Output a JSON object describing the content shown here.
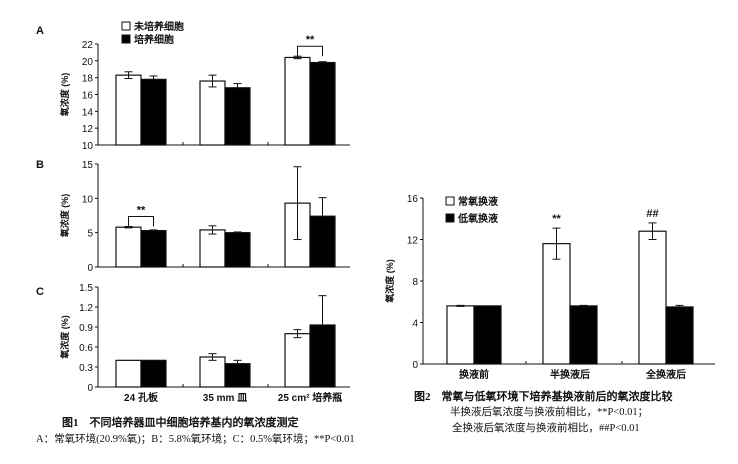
{
  "figure1": {
    "caption_title": "图1　不同培养器皿中细胞培养基内的氧浓度测定",
    "caption_note": "A：常氧环境(20.9%氧)；B：5.8%氧环境；C：0.5%氧环境；**P<0.01"
  },
  "figure2": {
    "caption_title": "图2　常氧与低氧环境下培养基换液前后的氧浓度比较",
    "caption_note1": "半换液后氧浓度与换液前相比，**P<0.01；",
    "caption_note2": "全换液后氧浓度与换液前相比，##P<0.01"
  },
  "colors": {
    "white_bar": "#ffffff",
    "black_bar": "#000000",
    "ink": "#111111"
  },
  "chart_data": [
    {
      "panel": "A",
      "type": "bar",
      "ylabel": "氧浓度 (%)",
      "ylim": [
        10,
        22
      ],
      "yticks": [
        10,
        12,
        14,
        16,
        18,
        20,
        22
      ],
      "categories": [
        "24 孔板",
        "35 mm 皿",
        "25 cm² 培养瓶"
      ],
      "show_categories": false,
      "series": [
        {
          "name": "未培养细胞",
          "fill": "white",
          "values": [
            18.3,
            17.6,
            20.4
          ],
          "errors": [
            0.4,
            0.7,
            0.15
          ]
        },
        {
          "name": "培养细胞",
          "fill": "black",
          "values": [
            17.8,
            16.8,
            19.8
          ],
          "errors": [
            0.4,
            0.5,
            0.1
          ]
        }
      ],
      "annotations": [
        {
          "group": 2,
          "text": "**",
          "bracket": true
        }
      ],
      "legend": "top-left"
    },
    {
      "panel": "B",
      "type": "bar",
      "ylabel": "氧浓度 (%)",
      "ylim": [
        0,
        15
      ],
      "yticks": [
        0,
        5,
        10,
        15
      ],
      "categories": [
        "24 孔板",
        "35 mm 皿",
        "25 cm² 培养瓶"
      ],
      "show_categories": false,
      "series": [
        {
          "fill": "white",
          "values": [
            5.8,
            5.4,
            9.3
          ],
          "errors": [
            0.1,
            0.6,
            5.3
          ]
        },
        {
          "fill": "black",
          "values": [
            5.3,
            5.0,
            7.4
          ],
          "errors": [
            0.1,
            0.1,
            2.7
          ]
        }
      ],
      "annotations": [
        {
          "group": 0,
          "text": "**",
          "bracket": true
        }
      ]
    },
    {
      "panel": "C",
      "type": "bar",
      "ylabel": "氧浓度 (%)",
      "ylim": [
        0,
        1.5
      ],
      "yticks": [
        "0",
        "0.3",
        "0.6",
        "0.9",
        "1.2",
        "1.5"
      ],
      "categories": [
        "24 孔板",
        "35 mm 皿",
        "25 cm² 培养瓶"
      ],
      "show_categories": true,
      "series": [
        {
          "fill": "white",
          "values": [
            0.4,
            0.45,
            0.8
          ],
          "errors": [
            0,
            0.05,
            0.06
          ]
        },
        {
          "fill": "black",
          "values": [
            0.4,
            0.35,
            0.93
          ],
          "errors": [
            0,
            0.05,
            0.44
          ]
        }
      ],
      "annotations": []
    },
    {
      "panel": "",
      "type": "bar",
      "ylabel": "氧浓度 (%)",
      "ylim": [
        0,
        16
      ],
      "yticks": [
        0,
        4,
        8,
        12,
        16
      ],
      "categories": [
        "换液前",
        "半换液后",
        "全换液后"
      ],
      "show_categories": true,
      "series": [
        {
          "name": "常氧换液",
          "fill": "white",
          "values": [
            5.6,
            11.6,
            12.8
          ],
          "errors": [
            0.05,
            1.5,
            0.8
          ]
        },
        {
          "name": "低氧换液",
          "fill": "black",
          "values": [
            5.6,
            5.6,
            5.5
          ],
          "errors": [
            0,
            0.05,
            0.15
          ]
        }
      ],
      "annotations": [
        {
          "group": 1,
          "text": "**",
          "bracket": false
        },
        {
          "group": 2,
          "text": "##",
          "bracket": false
        }
      ],
      "legend": "top-left"
    }
  ]
}
